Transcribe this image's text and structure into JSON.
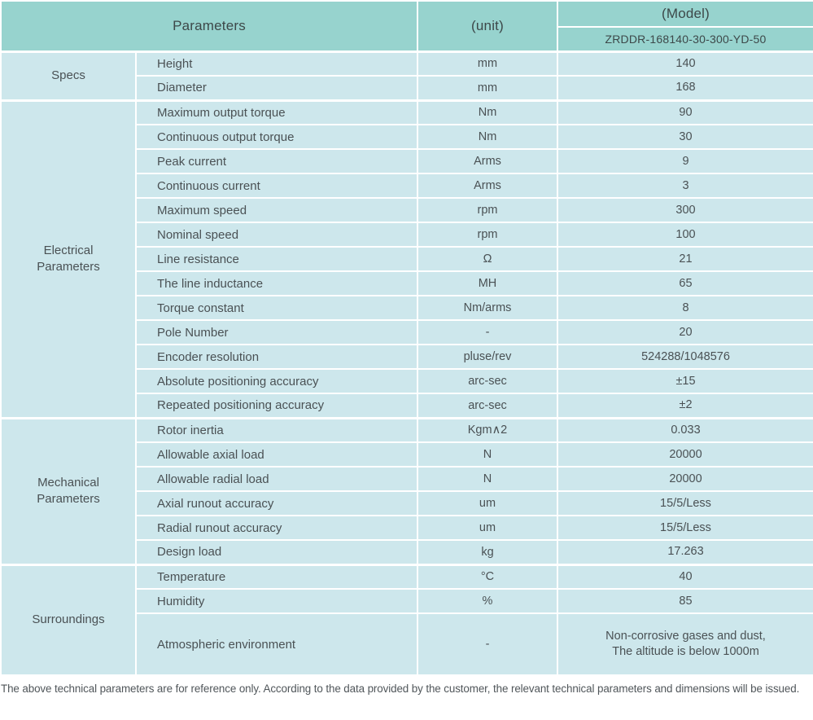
{
  "colors": {
    "header_bg": "#97d3ce",
    "header_text": "#3d4849",
    "row_bg": "#cde7ec",
    "grid": "#ffffff",
    "text": "#4a5154",
    "footnote_text": "#50565a"
  },
  "table": {
    "header": {
      "parameters_label": "Parameters",
      "unit_label": "(unit)",
      "model_label": "(Model)",
      "model_value": "ZRDDR-168140-30-300-YD-50"
    },
    "sections": [
      {
        "category": "Specs",
        "rows": [
          {
            "name": "Height",
            "unit": "mm",
            "value": "140"
          },
          {
            "name": "Diameter",
            "unit": "mm",
            "value": "168"
          }
        ]
      },
      {
        "category": "Electrical Parameters",
        "rows": [
          {
            "name": "Maximum output torque",
            "unit": "Nm",
            "value": "90"
          },
          {
            "name": "Continuous output torque",
            "unit": "Nm",
            "value": "30"
          },
          {
            "name": "Peak current",
            "unit": "Arms",
            "value": "9"
          },
          {
            "name": "Continuous current",
            "unit": "Arms",
            "value": "3"
          },
          {
            "name": "Maximum speed",
            "unit": "rpm",
            "value": "300"
          },
          {
            "name": "Nominal speed",
            "unit": "rpm",
            "value": "100"
          },
          {
            "name": "Line resistance",
            "unit": "Ω",
            "value": "21"
          },
          {
            "name": "The line inductance",
            "unit": "MH",
            "value": "65"
          },
          {
            "name": "Torque constant",
            "unit": "Nm/arms",
            "value": "8"
          },
          {
            "name": "Pole Number",
            "unit": "-",
            "value": "20"
          },
          {
            "name": "Encoder resolution",
            "unit": "pluse/rev",
            "value": "524288/1048576"
          },
          {
            "name": "Absolute positioning accuracy",
            "unit": "arc-sec",
            "value": "±15"
          },
          {
            "name": "Repeated positioning accuracy",
            "unit": "arc-sec",
            "value": "±2"
          }
        ]
      },
      {
        "category": "Mechanical Parameters",
        "rows": [
          {
            "name": "Rotor inertia",
            "unit": "Kgm∧2",
            "value": "0.033"
          },
          {
            "name": "Allowable axial load",
            "unit": "N",
            "value": "20000"
          },
          {
            "name": "Allowable radial load",
            "unit": "N",
            "value": "20000"
          },
          {
            "name": "Axial runout accuracy",
            "unit": "um",
            "value": "15/5/Less"
          },
          {
            "name": "Radial runout accuracy",
            "unit": "um",
            "value": "15/5/Less"
          },
          {
            "name": "Design load",
            "unit": "kg",
            "value": "17.263"
          }
        ]
      },
      {
        "category": "Surroundings",
        "rows": [
          {
            "name": "Temperature",
            "unit": "°C",
            "value": "40"
          },
          {
            "name": "Humidity",
            "unit": "%",
            "value": "85"
          },
          {
            "name": "Atmospheric environment",
            "unit": "-",
            "value": "Non-corrosive gases and dust,\nThe altitude is below 1000m"
          }
        ]
      }
    ],
    "footnote": "The above technical parameters are for reference only. According to the data provided by the customer, the relevant technical parameters and dimensions will be issued."
  }
}
